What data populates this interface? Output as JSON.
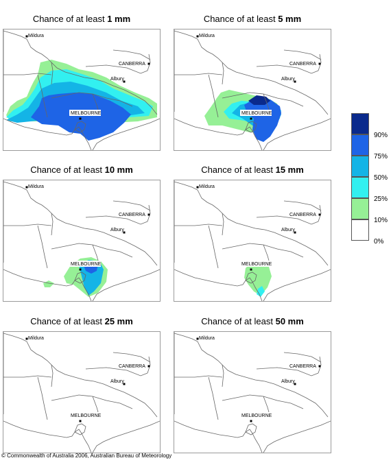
{
  "panels": [
    {
      "title_prefix": "Chance of at least ",
      "threshold": "1 mm",
      "level": "1"
    },
    {
      "title_prefix": "Chance of at least ",
      "threshold": "5 mm",
      "level": "5"
    },
    {
      "title_prefix": "Chance of at least ",
      "threshold": "10 mm",
      "level": "10"
    },
    {
      "title_prefix": "Chance of at least ",
      "threshold": "15 mm",
      "level": "15"
    },
    {
      "title_prefix": "Chance of at least ",
      "threshold": "25 mm",
      "level": "25"
    },
    {
      "title_prefix": "Chance of at least ",
      "threshold": "50 mm",
      "level": "50"
    }
  ],
  "map_labels": {
    "mildura": "Mildura",
    "canberra": "CANBERRA",
    "albury": "Albury",
    "melbourne": "MELBOURNE"
  },
  "legend": {
    "labels": [
      "90%",
      "75%",
      "50%",
      "25%",
      "10%",
      "0%"
    ],
    "colors": [
      "#0a2a8c",
      "#1e64e6",
      "#14b4e6",
      "#32f0f0",
      "#96f096",
      "#ffffff"
    ]
  },
  "copyright": "© Commonwealth of Australia 2006, Australian Bureau of Meteorology",
  "colors": {
    "boundary": "#666666",
    "frame": "#9a9a9a"
  }
}
